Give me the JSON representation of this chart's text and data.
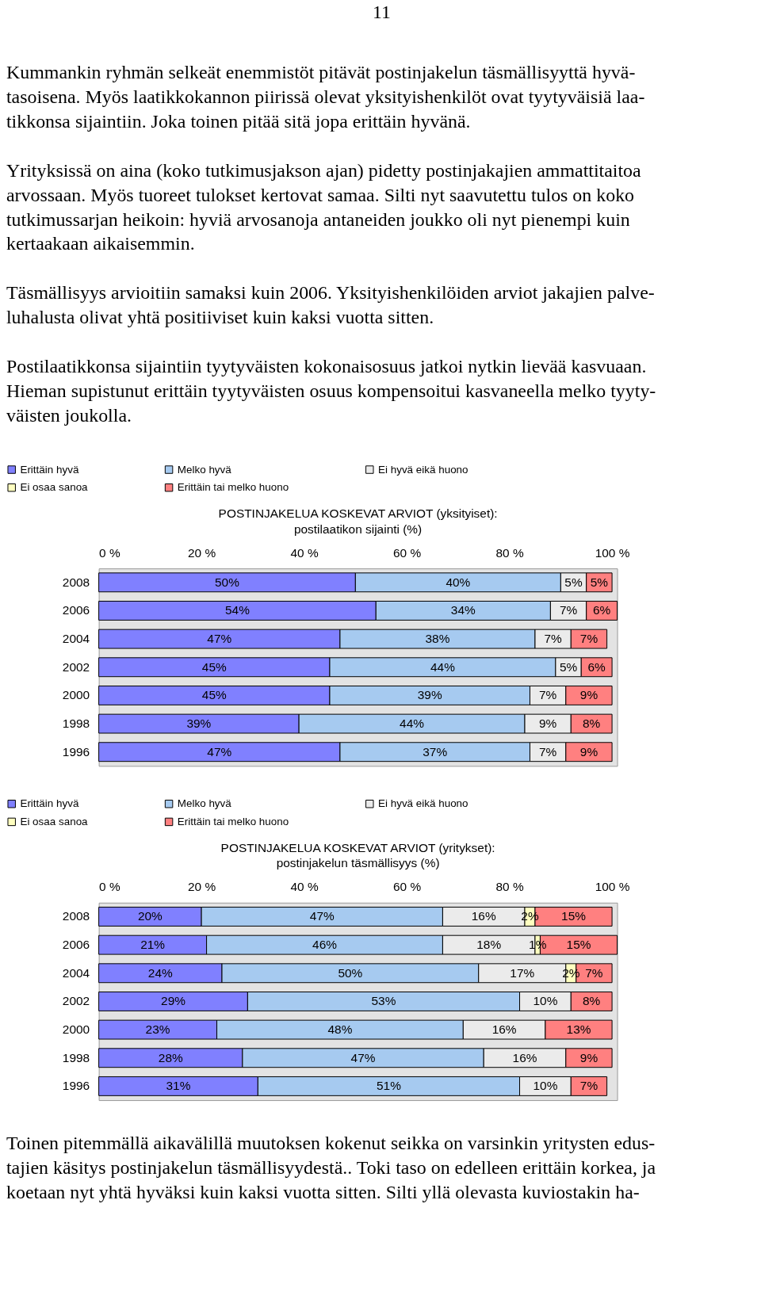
{
  "chart_data": [
    {
      "type": "bar",
      "orientation": "horizontal",
      "stacked": true,
      "title": "POSTINJAKELUA KOSKEVAT ARVIOT (yksityiset):",
      "subtitle": "postilaatikon sijainti (%)",
      "categories": [
        "2008",
        "2006",
        "2004",
        "2002",
        "2000",
        "1998",
        "1996"
      ],
      "series": [
        {
          "name": "Erittäin hyvä",
          "color": "#8080ff",
          "values": [
            50,
            54,
            47,
            45,
            45,
            39,
            47
          ],
          "value_labels": [
            "50%",
            "54%",
            "47%",
            "45%",
            "45%",
            "39%",
            "47%"
          ]
        },
        {
          "name": "Melko hyvä",
          "color": "#a6caf0",
          "values": [
            40,
            34,
            38,
            44,
            39,
            44,
            37
          ],
          "value_labels": [
            "40%",
            "34%",
            "38%",
            "44%",
            "39%",
            "44%",
            "37%"
          ]
        },
        {
          "name": "Ei hyvä eikä huono",
          "color": "#ebebeb",
          "values": [
            5,
            7,
            7,
            5,
            7,
            9,
            7
          ],
          "value_labels": [
            "5%",
            "7%",
            "7%",
            "5%",
            "7%",
            "9%",
            "7%"
          ]
        },
        {
          "name": "Ei osaa sanoa",
          "color": "#ffffc0",
          "values": [
            0,
            0,
            0,
            0,
            0,
            0,
            0
          ],
          "value_labels": [
            null,
            null,
            null,
            null,
            null,
            null,
            null
          ]
        },
        {
          "name": "Erittäin tai melko huono",
          "color": "#ff8080",
          "values": [
            5,
            6,
            7,
            6,
            9,
            8,
            9
          ],
          "value_labels": [
            "5%",
            "6%",
            "7%",
            "6%",
            "9%",
            "8%",
            "9%"
          ]
        }
      ],
      "xlim": [
        0,
        101
      ],
      "xticks": [
        {
          "value": 0,
          "label": "0 %"
        },
        {
          "value": 20,
          "label": "20 %"
        },
        {
          "value": 40,
          "label": "40 %"
        },
        {
          "value": 60,
          "label": "60 %"
        },
        {
          "value": 80,
          "label": "80 %"
        },
        {
          "value": 100,
          "label": "100 %"
        }
      ],
      "legend": "top",
      "grid": false,
      "annotations": [
        "11",
        "Kummankin ryhmän selkeät enemmistöt pitävät postinjakelun täsmällisyyttä hyvä-\ntasoisena. Myös laatikkokannon piirissä olevat yksityishenkilöt ovat tyytyväisiä laa-\ntikkonsa sijaintiin. Joka toinen pitää sitä jopa erittäin hyvänä.",
        "Yrityksissä on aina (koko tutkimusjakson ajan) pidetty postinjakajien ammattitaitoa\narvossaan. Myös tuoreet tulokset kertovat samaa. Silti nyt saavutettu tulos on koko\ntutkimussarjan heikoin: hyviä arvosanoja antaneiden joukko oli nyt pienempi kuin\nkertaakaan aikaisemmin.",
        "Täsmällisyys arvioitiin samaksi kuin 2006. Yksityishenkilöiden arviot jakajien palve-\nluhalusta olivat yhtä positiiviset kuin kaksi vuotta sitten.",
        "Postilaatikkonsa sijaintiin tyytyväisten kokonaisosuus jatkoi nytkin lievää kasvuaan.\nHieman supistunut erittäin tyytyväisten osuus kompensoitui kasvaneella melko tyyty-\nväisten joukolla."
      ]
    },
    {
      "type": "bar",
      "orientation": "horizontal",
      "stacked": true,
      "title": "POSTINJAKELUA KOSKEVAT ARVIOT (yritykset):",
      "subtitle": "postinjakelun täsmällisyys (%)",
      "categories": [
        "2008",
        "2006",
        "2004",
        "2002",
        "2000",
        "1998",
        "1996"
      ],
      "series": [
        {
          "name": "Erittäin hyvä",
          "color": "#8080ff",
          "values": [
            20,
            21,
            24,
            29,
            23,
            28,
            31
          ],
          "value_labels": [
            "20%",
            "21%",
            "24%",
            "29%",
            "23%",
            "28%",
            "31%"
          ]
        },
        {
          "name": "Melko hyvä",
          "color": "#a6caf0",
          "values": [
            47,
            46,
            50,
            53,
            48,
            47,
            51
          ],
          "value_labels": [
            "47%",
            "46%",
            "50%",
            "53%",
            "48%",
            "47%",
            "51%"
          ]
        },
        {
          "name": "Ei hyvä eikä huono",
          "color": "#ebebeb",
          "values": [
            16,
            18,
            17,
            10,
            16,
            16,
            10
          ],
          "value_labels": [
            "16%",
            "18%",
            "17%",
            "10%",
            "16%",
            "16%",
            "10%"
          ]
        },
        {
          "name": "Ei osaa sanoa",
          "color": "#ffffc0",
          "values": [
            2,
            1,
            2,
            0,
            0,
            0,
            0
          ],
          "value_labels": [
            "2%",
            "1%",
            "2%",
            null,
            null,
            null,
            null
          ]
        },
        {
          "name": "Erittäin tai melko huono",
          "color": "#ff8080",
          "values": [
            15,
            15,
            7,
            8,
            13,
            9,
            7
          ],
          "value_labels": [
            "15%",
            "15%",
            "7%",
            "8%",
            "13%",
            "9%",
            "7%"
          ]
        }
      ],
      "xlim": [
        0,
        101
      ],
      "xticks": [
        {
          "value": 0,
          "label": "0 %"
        },
        {
          "value": 20,
          "label": "20 %"
        },
        {
          "value": 40,
          "label": "40 %"
        },
        {
          "value": 60,
          "label": "60 %"
        },
        {
          "value": 80,
          "label": "80 %"
        },
        {
          "value": 100,
          "label": "100 %"
        }
      ],
      "legend": "top",
      "grid": false,
      "annotations": [
        "Toinen pitemmällä aikavälillä muutoksen kokenut seikka on varsinkin yritysten edus-\ntajien käsitys postinjakelun täsmällisyydestä.. Toki taso on edelleen erittäin korkea, ja\nkoetaan nyt yhtä hyväksi kuin kaksi vuotta sitten. Silti yllä olevasta kuviostakin ha-"
      ]
    }
  ]
}
